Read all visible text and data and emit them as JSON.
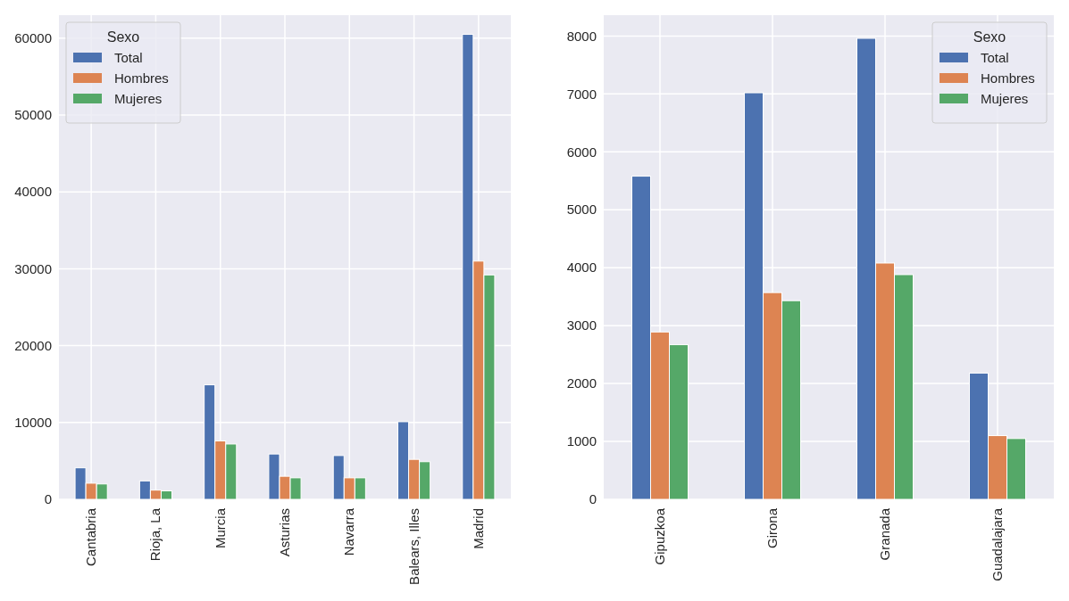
{
  "chart_data": [
    {
      "type": "bar",
      "categories": [
        "Cantabria",
        "Rioja, La",
        "Murcia",
        "Asturias",
        "Navarra",
        "Balears, Illes",
        "Madrid"
      ],
      "series": [
        {
          "name": "Total",
          "color": "#4c72b0",
          "values": [
            4100,
            2400,
            14900,
            5900,
            5700,
            10100,
            60500
          ]
        },
        {
          "name": "Hombres",
          "color": "#dd8452",
          "values": [
            2100,
            1200,
            7600,
            3000,
            2800,
            5200,
            31000
          ]
        },
        {
          "name": "Mujeres",
          "color": "#55a868",
          "values": [
            2000,
            1100,
            7200,
            2800,
            2800,
            4900,
            29200
          ]
        }
      ],
      "ylim": [
        0,
        63000
      ],
      "yticks": [
        0,
        10000,
        20000,
        30000,
        40000,
        50000,
        60000
      ],
      "grid": true,
      "legend": "top left",
      "legend_title": "Sexo"
    },
    {
      "type": "bar",
      "categories": [
        "Gipuzkoa",
        "Girona",
        "Granada",
        "Guadalajara"
      ],
      "series": [
        {
          "name": "Total",
          "color": "#4c72b0",
          "values": [
            5580,
            7020,
            7960,
            2180
          ]
        },
        {
          "name": "Hombres",
          "color": "#dd8452",
          "values": [
            2890,
            3570,
            4080,
            1100
          ]
        },
        {
          "name": "Mujeres",
          "color": "#55a868",
          "values": [
            2670,
            3430,
            3880,
            1050
          ]
        }
      ],
      "ylim": [
        0,
        8360
      ],
      "yticks": [
        0,
        1000,
        2000,
        3000,
        4000,
        5000,
        6000,
        7000,
        8000
      ],
      "grid": true,
      "legend": "top right",
      "legend_title": "Sexo"
    }
  ]
}
